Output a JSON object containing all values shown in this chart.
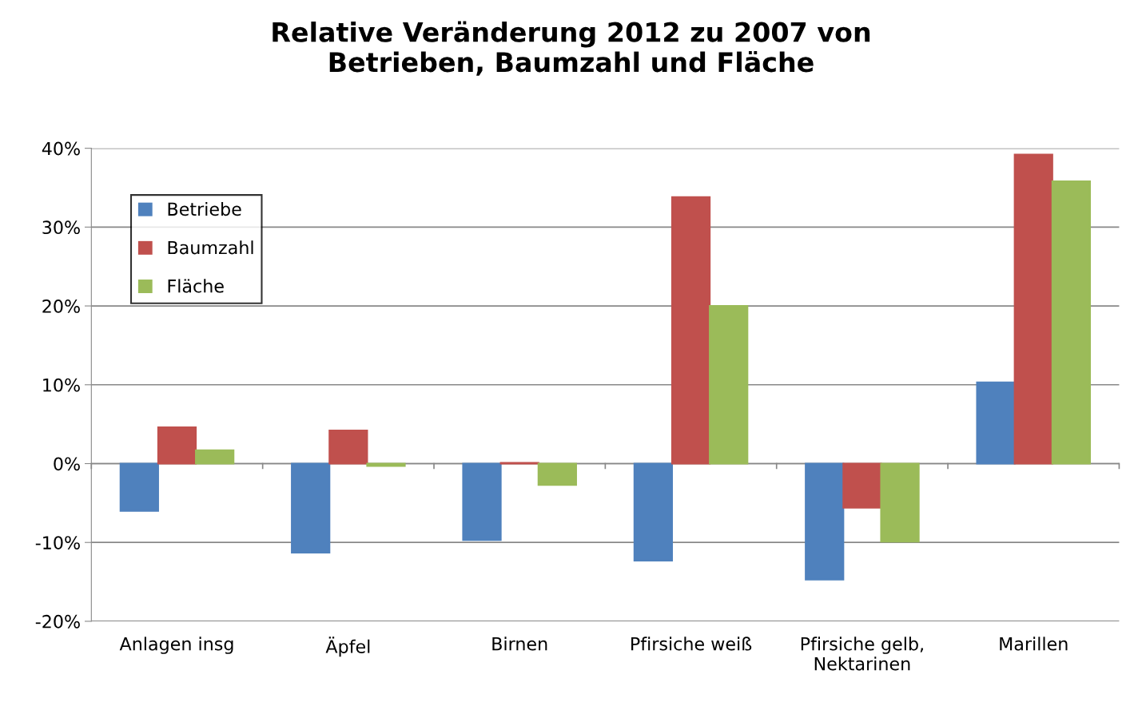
{
  "chart_data": {
    "type": "bar",
    "title": "Relative Veränderung 2012 zu 2007 von\nBetrieben, Baumzahl und Fläche",
    "categories": [
      "Anlagen insg",
      "Äpfel",
      "Birnen",
      "Pfirsiche weiß",
      "Pfirsiche gelb,\nNektarinen",
      "Marillen"
    ],
    "series": [
      {
        "name": "Betriebe",
        "color": "#4f81bd",
        "values": [
          -6.0,
          -11.3,
          -9.7,
          -12.3,
          -14.7,
          10.3
        ]
      },
      {
        "name": "Baumzahl",
        "color": "#c0504d",
        "values": [
          4.6,
          4.2,
          0.1,
          33.8,
          -5.6,
          39.2
        ]
      },
      {
        "name": "Fläche",
        "color": "#9bbb59",
        "values": [
          1.7,
          -0.3,
          -2.7,
          20.0,
          -9.9,
          35.8
        ]
      }
    ],
    "ylim": [
      -20,
      40
    ],
    "yticks": [
      {
        "value": -20,
        "label": "-20%"
      },
      {
        "value": -10,
        "label": "-10%"
      },
      {
        "value": 0,
        "label": "0%"
      },
      {
        "value": 10,
        "label": "10%"
      },
      {
        "value": 20,
        "label": "20%"
      },
      {
        "value": 30,
        "label": "30%"
      },
      {
        "value": 40,
        "label": "40%"
      }
    ],
    "grid": "y",
    "legend": "top left"
  }
}
